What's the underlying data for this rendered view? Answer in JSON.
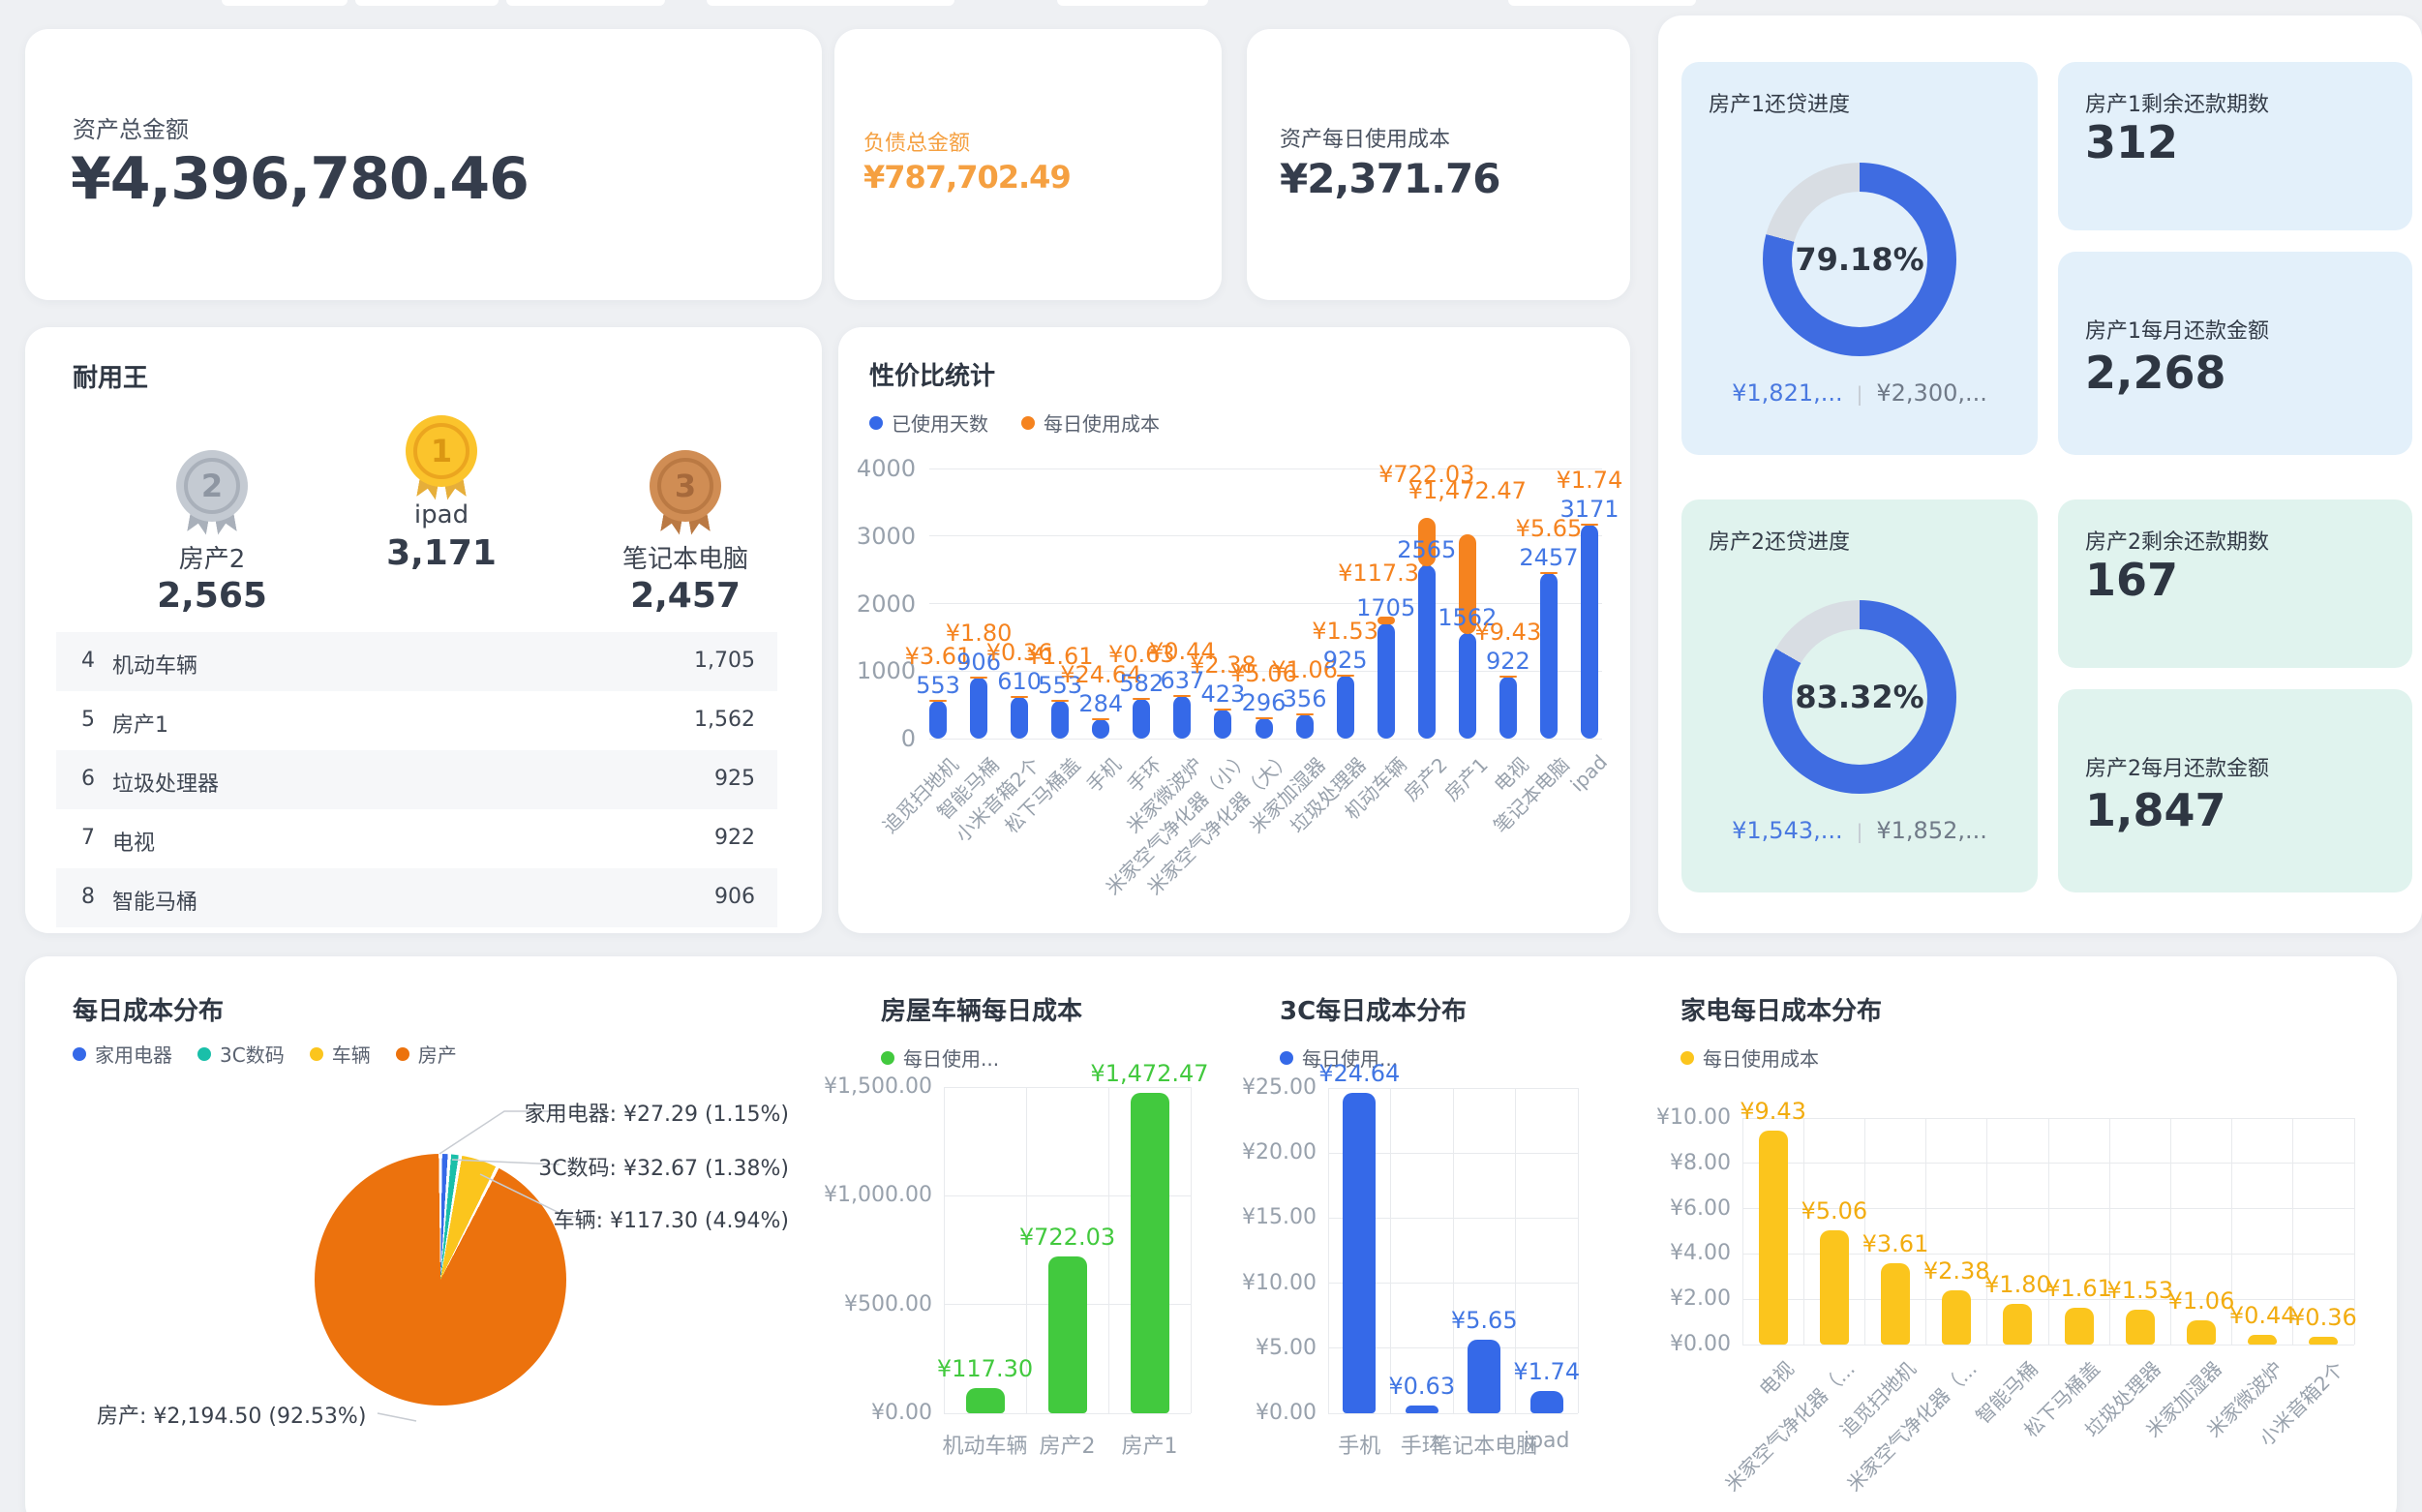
{
  "summary": {
    "total_assets": {
      "label": "资产总金额",
      "value": "¥4,396,780.46"
    },
    "total_liabilities": {
      "label": "负债总金额",
      "value": "¥787,702.49",
      "color": "#f5a041"
    },
    "daily_cost": {
      "label": "资产每日使用成本",
      "value": "¥2,371.76"
    }
  },
  "loan_panel": {
    "property1": {
      "remaining_label": "房产1剩余还款期数",
      "remaining_value": "312",
      "monthly_label": "房产1每月还款金额",
      "monthly_value": "2,268",
      "tint": "#e3f0fa"
    },
    "property2": {
      "remaining_label": "房产2剩余还款期数",
      "remaining_value": "167",
      "monthly_label": "房产2每月还款金额",
      "monthly_value": "1,847",
      "tint": "#e0f3ee"
    }
  },
  "durable_king": {
    "title": "耐用王",
    "podium": [
      {
        "rank": "2",
        "name": "房产2",
        "value": "2,565",
        "tier": "silver"
      },
      {
        "rank": "1",
        "name": "ipad",
        "value": "3,171",
        "tier": "gold"
      },
      {
        "rank": "3",
        "name": "笔记本电脑",
        "value": "2,457",
        "tier": "bronze"
      }
    ],
    "list": [
      {
        "rank": "4",
        "name": "机动车辆",
        "value": "1,705"
      },
      {
        "rank": "5",
        "name": "房产1",
        "value": "1,562"
      },
      {
        "rank": "6",
        "name": "垃圾处理器",
        "value": "925"
      },
      {
        "rank": "7",
        "name": "电视",
        "value": "922"
      },
      {
        "rank": "8",
        "name": "智能马桶",
        "value": "906"
      }
    ]
  },
  "chart_data": [
    {
      "id": "cost_performance",
      "type": "bar",
      "stacked": true,
      "title": "性价比统计",
      "legend": [
        {
          "label": "已使用天数",
          "color": "#3569e8"
        },
        {
          "label": "每日使用成本",
          "color": "#f5831f"
        }
      ],
      "categories": [
        "追觅扫地机",
        "智能马桶",
        "小米音箱2个",
        "松下马桶盖",
        "手机",
        "手环",
        "米家微波炉",
        "米家空气净化器（小）",
        "米家空气净化器（大）",
        "米家加湿器",
        "垃圾处理器",
        "机动车辆",
        "房产2",
        "房产1",
        "电视",
        "笔记本电脑",
        "ipad"
      ],
      "series": [
        {
          "name": "已使用天数",
          "color": "#3569e8",
          "values": [
            553,
            906,
            610,
            553,
            284,
            582,
            637,
            423,
            296,
            356,
            925,
            1705,
            2565,
            1562,
            922,
            2457,
            3171
          ],
          "labels": [
            "553",
            "906",
            "610",
            "553",
            "284",
            "582",
            "637",
            "423",
            "296",
            "356",
            "925",
            "1705",
            "2565",
            "1562",
            "922",
            "2457",
            "3171"
          ]
        },
        {
          "name": "每日使用成本",
          "color": "#f5831f",
          "values": [
            3.61,
            1.8,
            0.36,
            1.61,
            24.64,
            0.63,
            0.44,
            2.38,
            5.06,
            1.06,
            1.53,
            117.3,
            722.03,
            1472.47,
            9.43,
            5.65,
            1.74
          ],
          "labels": [
            "¥3.61",
            "¥1.80",
            "¥0.36",
            "¥1.61",
            "¥24.64",
            "¥0.63",
            "¥0.44",
            "¥2.38",
            "¥5.06",
            "¥1.06",
            "¥1.53",
            "¥117.30",
            "¥722.03",
            "¥1,472.47",
            "¥9.43",
            "¥5.65",
            "¥1.74"
          ]
        }
      ],
      "ylim": [
        0,
        4000
      ],
      "yticks": [
        "0",
        "1000",
        "2000",
        "3000",
        "4000"
      ],
      "grid": "horizontal",
      "legend_position": "top"
    },
    {
      "id": "daily_cost_pie",
      "type": "pie",
      "title": "每日成本分布",
      "legend": [
        {
          "label": "家用电器",
          "color": "#3569e8"
        },
        {
          "label": "3C数码",
          "color": "#1abfa9"
        },
        {
          "label": "车辆",
          "color": "#fbc51d"
        },
        {
          "label": "房产",
          "color": "#ec720d"
        }
      ],
      "slices": [
        {
          "name": "家用电器",
          "value": 27.29,
          "pct": 1.15,
          "color": "#3569e8",
          "label": "家用电器: ¥27.29 (1.15%)"
        },
        {
          "name": "3C数码",
          "value": 32.67,
          "pct": 1.38,
          "color": "#1abfa9",
          "label": "3C数码: ¥32.67 (1.38%)"
        },
        {
          "name": "车辆",
          "value": 117.3,
          "pct": 4.94,
          "color": "#fbc51d",
          "label": "车辆: ¥117.30 (4.94%)"
        },
        {
          "name": "房产",
          "value": 2194.5,
          "pct": 92.53,
          "color": "#ec720d",
          "label": "房产: ¥2,194.50 (92.53%)"
        }
      ]
    },
    {
      "id": "house_vehicle",
      "type": "bar",
      "title": "房屋车辆每日成本",
      "legend_label": "每日使用...",
      "color": "#42c93e",
      "label_color": "#42c93e",
      "categories": [
        "机动车辆",
        "房产2",
        "房产1"
      ],
      "values": [
        117.3,
        722.03,
        1472.47
      ],
      "labels": [
        "¥117.30",
        "¥722.03",
        "¥1,472.47"
      ],
      "ylim": [
        0,
        1500
      ],
      "yticks": [
        "¥0.00",
        "¥500.00",
        "¥1,000.00",
        "¥1,500.00"
      ],
      "grid": "both"
    },
    {
      "id": "c3_daily",
      "type": "bar",
      "title": "3C每日成本分布",
      "legend_label": "每日使用...",
      "color": "#3569e8",
      "label_color": "#4176e3",
      "categories": [
        "手机",
        "手环",
        "笔记本电脑",
        "ipad"
      ],
      "values": [
        24.64,
        0.63,
        5.65,
        1.74
      ],
      "labels": [
        "¥24.64",
        "¥0.63",
        "¥5.65",
        "¥1.74"
      ],
      "ylim": [
        0,
        25
      ],
      "yticks": [
        "¥0.00",
        "¥5.00",
        "¥10.00",
        "¥15.00",
        "¥20.00",
        "¥25.00"
      ],
      "grid": "both"
    },
    {
      "id": "appliance_daily",
      "type": "bar",
      "title": "家电每日成本分布",
      "legend_label": "每日使用成本",
      "color": "#fbc51d",
      "label_color": "#f2ac0f",
      "categories": [
        "电视",
        "米家空气净化器（...",
        "追觅扫地机",
        "米家空气净化器（...",
        "智能马桶",
        "松下马桶盖",
        "垃圾处理器",
        "米家加湿器",
        "米家微波炉",
        "小米音箱2个"
      ],
      "values": [
        9.43,
        5.06,
        3.61,
        2.38,
        1.8,
        1.61,
        1.53,
        1.06,
        0.44,
        0.36
      ],
      "labels": [
        "¥9.43",
        "¥5.06",
        "¥3.61",
        "¥2.38",
        "¥1.80",
        "¥1.61",
        "¥1.53",
        "¥1.06",
        "¥0.44",
        "¥0.36"
      ],
      "ylim": [
        0,
        10
      ],
      "yticks": [
        "¥0.00",
        "¥2.00",
        "¥4.00",
        "¥6.00",
        "¥8.00",
        "¥10.00"
      ],
      "grid": "both",
      "rotate_labels": true
    },
    {
      "id": "loan1_progress",
      "type": "donut",
      "title": "房产1还贷进度",
      "percent": 79.18,
      "percent_label": "79.18%",
      "paid_label": "¥1,821,...",
      "total_label": "¥2,300,...",
      "ring_color": "#3f6ce1",
      "track_color": "#d8dde3"
    },
    {
      "id": "loan2_progress",
      "type": "donut",
      "title": "房产2还贷进度",
      "percent": 83.32,
      "percent_label": "83.32%",
      "paid_label": "¥1,543,...",
      "total_label": "¥1,852,...",
      "ring_color": "#3f6ce1",
      "track_color": "#d8dde3"
    }
  ]
}
